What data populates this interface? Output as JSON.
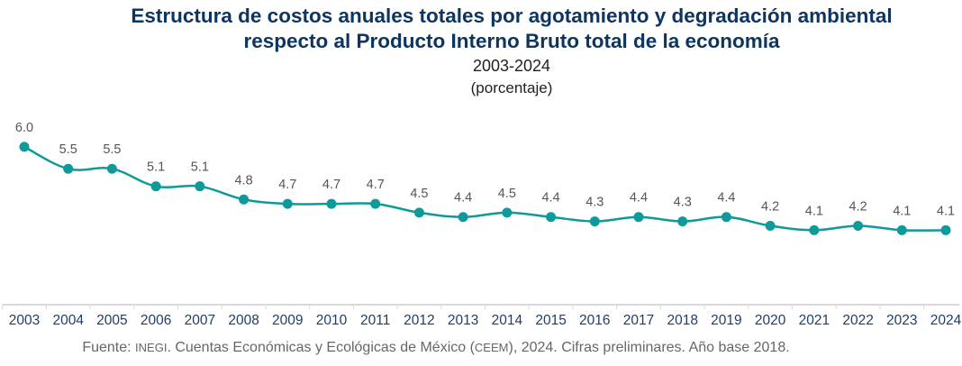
{
  "chart_data": {
    "type": "line",
    "title": "Estructura de costos anuales totales por agotamiento y degradación ambiental respecto al Producto Interno Bruto total de la economía",
    "title_lines": [
      "Estructura de costos anuales totales por agotamiento y degradación ambiental",
      "respecto al Producto Interno Bruto total de la economía"
    ],
    "subtitle": "2003-2024",
    "unit": "(porcentaje)",
    "categories": [
      "2003",
      "2004",
      "2005",
      "2006",
      "2007",
      "2008",
      "2009",
      "2010",
      "2011",
      "2012",
      "2013",
      "2014",
      "2015",
      "2016",
      "2017",
      "2018",
      "2019",
      "2020",
      "2021",
      "2022",
      "2023",
      "2024"
    ],
    "values": [
      6.0,
      5.5,
      5.5,
      5.1,
      5.1,
      4.8,
      4.7,
      4.7,
      4.7,
      4.5,
      4.4,
      4.5,
      4.4,
      4.3,
      4.4,
      4.3,
      4.4,
      4.2,
      4.1,
      4.2,
      4.1,
      4.1
    ],
    "data_labels": [
      "6.0",
      "5.5",
      "5.5",
      "5.1",
      "5.1",
      "4.8",
      "4.7",
      "4.7",
      "4.7",
      "4.5",
      "4.4",
      "4.5",
      "4.4",
      "4.3",
      "4.4",
      "4.3",
      "4.4",
      "4.2",
      "4.1",
      "4.2",
      "4.1",
      "4.1"
    ],
    "ylim": [
      2.4,
      6.8
    ],
    "grid": false,
    "legend": "none",
    "colors": {
      "line": "#0e9a9a",
      "title": "#0d3560",
      "axis_labels": "#1f3f66",
      "data_labels": "#555555"
    }
  },
  "footer": {
    "prefix": "Fuente: ",
    "org": "INEGI",
    "middle": ". Cuentas Económicas y Ecológicas de México (",
    "acronym": "CEEM",
    "suffix": "), 2024. Cifras preliminares. Año base 2018."
  }
}
